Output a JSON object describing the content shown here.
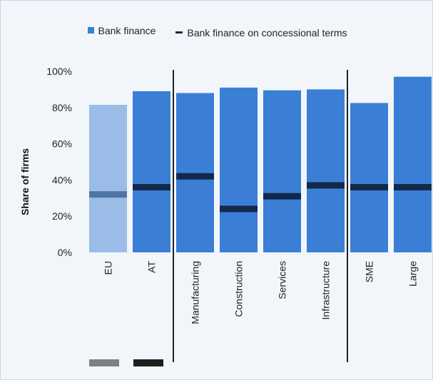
{
  "legend": {
    "bank_finance": "Bank finance",
    "concessional": "Bank finance on concessional terms"
  },
  "colors": {
    "bar": "#3a7fd5",
    "bar_eu": "#9bbce6",
    "marker": "#13294b",
    "marker_eu": "#4f75a4",
    "swatch_eu": "#808080",
    "swatch_at": "#1e1e1e",
    "divider": "#222222"
  },
  "chart_data": {
    "type": "bar",
    "title": "",
    "xlabel": "",
    "ylabel": "Share of firms",
    "ylim": [
      0,
      100
    ],
    "yticks": [
      "0%",
      "20%",
      "40%",
      "60%",
      "80%",
      "100%"
    ],
    "categories": [
      "EU",
      "AT",
      "Manufacturing",
      "Construction",
      "Services",
      "Infrastructure",
      "SME",
      "Large"
    ],
    "series": [
      {
        "name": "Bank finance",
        "type": "bar",
        "values": [
          81.5,
          89,
          88,
          91,
          89.5,
          90,
          82.5,
          97
        ]
      },
      {
        "name": "Bank finance on concessional terms",
        "type": "marker",
        "values": [
          32,
          36,
          42,
          24,
          31,
          37,
          36,
          36
        ]
      }
    ],
    "groups": [
      [
        "EU",
        "AT"
      ],
      [
        "Manufacturing",
        "Construction",
        "Services",
        "Infrastructure"
      ],
      [
        "SME",
        "Large"
      ]
    ],
    "grid": false,
    "legend_position": "top"
  }
}
